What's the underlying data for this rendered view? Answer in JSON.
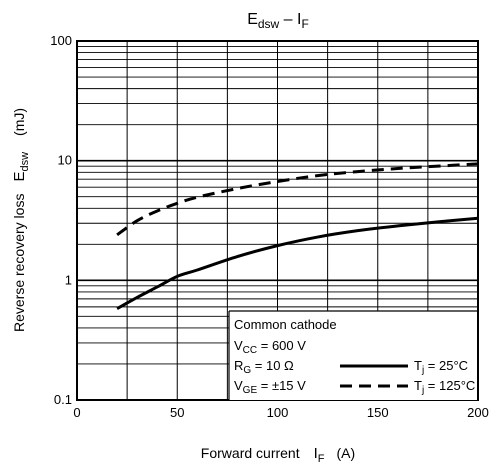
{
  "chart_data": {
    "type": "line",
    "title": {
      "main": "E",
      "sub": "dsw",
      "sep": " – ",
      "main2": "I",
      "sub2": "F"
    },
    "xlabel": {
      "text": "Forward current",
      "sym": "I",
      "sub": "F",
      "unit": "(A)"
    },
    "ylabel": {
      "text": "Reverse recovery loss",
      "sym": "E",
      "sub": "dsw",
      "unit": "(mJ)"
    },
    "xlim": [
      0,
      200
    ],
    "ylim": [
      0.1,
      100
    ],
    "yscale": "log",
    "grid": true,
    "x_ticks": [
      "0",
      "50",
      "100",
      "150",
      "200"
    ],
    "y_ticks": [
      "0.1",
      "1",
      "10",
      "100"
    ],
    "conditions": [
      {
        "sym": "V",
        "sub": "CC",
        "rest": " = 600 V"
      },
      {
        "sym": "R",
        "sub": "G",
        "rest": " = 10 Ω"
      },
      {
        "sym": "V",
        "sub": "GE",
        "rest": " = ±15 V"
      }
    ],
    "legend_header": "Common cathode",
    "legend_position": "bottom-right",
    "series": [
      {
        "name": {
          "sym": "T",
          "sub": "j",
          "rest": " = 25°C"
        },
        "style": "solid",
        "x": [
          20,
          30,
          40,
          50,
          60,
          80,
          100,
          120,
          140,
          160,
          180,
          200
        ],
        "y": [
          0.58,
          0.72,
          0.88,
          1.08,
          1.22,
          1.58,
          1.95,
          2.3,
          2.6,
          2.85,
          3.08,
          3.3
        ]
      },
      {
        "name": {
          "sym": "T",
          "sub": "j",
          "rest": " = 125°C"
        },
        "style": "dashed",
        "x": [
          20,
          30,
          40,
          50,
          60,
          80,
          100,
          120,
          140,
          160,
          180,
          200
        ],
        "y": [
          2.4,
          3.15,
          3.8,
          4.4,
          4.95,
          5.85,
          6.7,
          7.5,
          8.1,
          8.6,
          9.0,
          9.4
        ]
      }
    ]
  }
}
